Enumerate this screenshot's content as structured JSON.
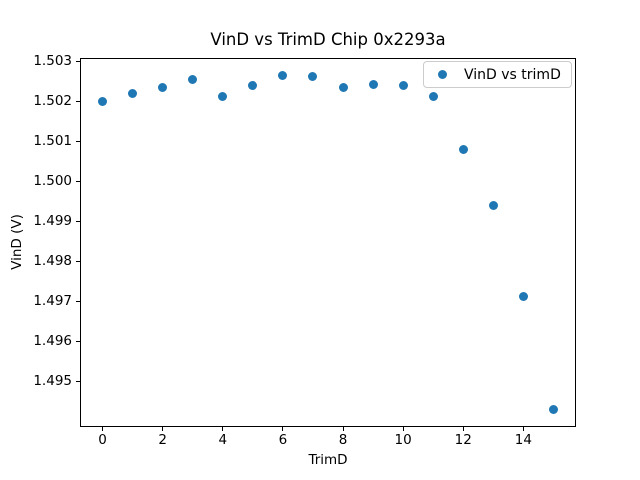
{
  "chart_data": {
    "type": "scatter",
    "title": "VinD vs TrimD Chip 0x2293a",
    "xlabel": "TrimD",
    "ylabel": "VinD (V)",
    "series": [
      {
        "name": "VinD vs trimD",
        "marker": "circle",
        "color": "#1f77b4",
        "x": [
          0,
          1,
          2,
          3,
          4,
          5,
          6,
          7,
          8,
          9,
          10,
          11,
          12,
          13,
          14,
          15
        ],
        "y": [
          1.50201,
          1.50222,
          1.50236,
          1.50255,
          1.50214,
          1.50242,
          1.50266,
          1.50263,
          1.50236,
          1.50244,
          1.5024,
          1.50213,
          1.50081,
          1.49939,
          1.49713,
          1.4943
        ]
      }
    ],
    "xlim": [
      -0.75,
      15.75
    ],
    "ylim": [
      1.49385,
      1.5031
    ],
    "xticks": {
      "values": [
        0,
        2,
        4,
        6,
        8,
        10,
        12,
        14
      ],
      "labels": [
        "0",
        "2",
        "4",
        "6",
        "8",
        "10",
        "12",
        "14"
      ]
    },
    "yticks": {
      "values": [
        1.495,
        1.496,
        1.497,
        1.498,
        1.499,
        1.5,
        1.501,
        1.502,
        1.503
      ],
      "labels": [
        "1.495",
        "1.496",
        "1.497",
        "1.498",
        "1.499",
        "1.500",
        "1.501",
        "1.502",
        "1.503"
      ]
    },
    "grid": false,
    "legend": {
      "position": "upper right",
      "entries": [
        {
          "label": "VinD vs trimD",
          "color": "#1f77b4"
        }
      ]
    },
    "colors": {
      "axes": "#000000",
      "text": "#000000",
      "background": "#ffffff",
      "legend_border": "#cccccc"
    }
  }
}
